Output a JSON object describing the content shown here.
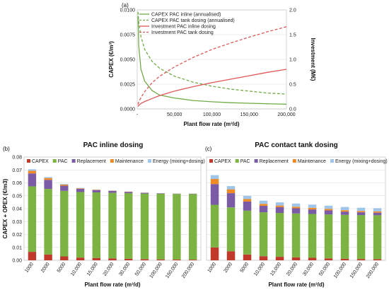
{
  "chart_data": [
    {
      "type": "line",
      "panel_label": "(a)",
      "xlabel": "Plant flow rate (m³/d)",
      "ylabel_left": "CAPEX (€/m³)",
      "ylabel_right": "Investment (M€)",
      "xlim": [
        0,
        200000
      ],
      "ylim_left": [
        0,
        0.01
      ],
      "ylim_right": [
        0,
        2.0
      ],
      "x_ticks": [
        "-",
        "50,000",
        "100,000",
        "150,000",
        "200,000"
      ],
      "y_ticks_left": [
        "0.0000",
        "0.0025",
        "0.0050",
        "0.0075",
        "0.0100"
      ],
      "y_ticks_right": [
        "0.0",
        "0.5",
        "1.0",
        "1.5",
        "2.0"
      ],
      "legend_position": "top-left",
      "x": [
        1000,
        2000,
        5000,
        10000,
        20000,
        30000,
        50000,
        75000,
        100000,
        125000,
        150000,
        175000,
        200000
      ],
      "series": [
        {
          "name": "CAPEX PAC inline (annualised)",
          "axis": "left",
          "color": "#70ad47",
          "dash": "solid",
          "values": [
            0.0094,
            0.0064,
            0.004,
            0.0028,
            0.00185,
            0.0014,
            0.0011,
            0.00085,
            0.00072,
            0.00063,
            0.00057,
            0.00052,
            0.00048
          ]
        },
        {
          "name": "CAPEX PAC tank dosing (annualised)",
          "axis": "left",
          "color": "#70ad47",
          "dash": "dashed",
          "values": [
            0.0098,
            0.0088,
            0.0073,
            0.006,
            0.0048,
            0.0041,
            0.0033,
            0.0027,
            0.0023,
            0.002,
            0.0018,
            0.0016,
            0.0015
          ]
        },
        {
          "name": "Investment PAC inline dosing",
          "axis": "right",
          "color": "#e15759",
          "dash": "solid",
          "values": [
            0.05,
            0.07,
            0.11,
            0.15,
            0.21,
            0.27,
            0.36,
            0.45,
            0.53,
            0.6,
            0.67,
            0.74,
            0.8
          ]
        },
        {
          "name": "Investment PAC tank dosing",
          "axis": "right",
          "color": "#e15759",
          "dash": "dashed",
          "values": [
            0.09,
            0.14,
            0.23,
            0.35,
            0.53,
            0.66,
            0.85,
            1.04,
            1.2,
            1.33,
            1.45,
            1.56,
            1.66
          ]
        }
      ]
    },
    {
      "type": "bar",
      "stacked": true,
      "panel_label": "(b)",
      "title": "PAC inline dosing",
      "xlabel": "Plant flow rate (m³/d)",
      "ylabel": "CAPEX + OPEX (€/m3)",
      "ylim": [
        0,
        0.08
      ],
      "y_ticks": [
        "0.00",
        "0.01",
        "0.02",
        "0.03",
        "0.04",
        "0.05",
        "0.06",
        "0.07",
        "0.08"
      ],
      "legend_position": "top",
      "categories": [
        "1000",
        "2000",
        "5000",
        "10,000",
        "15,000",
        "20,000",
        "30,000",
        "50,000",
        "100,000",
        "150,000",
        "200,000"
      ],
      "series": [
        {
          "name": "CAPEX",
          "color": "#c0392b",
          "values": [
            0.0065,
            0.0045,
            0.003,
            0.0021,
            0.0018,
            0.0015,
            0.0012,
            0.0009,
            0.0007,
            0.0006,
            0.0005
          ]
        },
        {
          "name": "PAC",
          "color": "#7cb342",
          "values": [
            0.0508,
            0.0508,
            0.0508,
            0.0508,
            0.0508,
            0.0508,
            0.0508,
            0.0508,
            0.0508,
            0.0508,
            0.0508
          ]
        },
        {
          "name": "Replacement",
          "color": "#7b5aa6",
          "values": [
            0.01,
            0.007,
            0.004,
            0.0025,
            0.0018,
            0.0014,
            0.001,
            0.0006,
            0.0003,
            0.0002,
            0.0002
          ]
        },
        {
          "name": "Maintenance",
          "color": "#f08a24",
          "values": [
            0.002,
            0.0014,
            0.0008,
            0.0004,
            0.0003,
            0.0002,
            0.0002,
            0.0001,
            0.0001,
            0.0001,
            0.0001
          ]
        },
        {
          "name": "Energy (mixing+dosing)",
          "color": "#9fc5e8",
          "values": [
            0.0012,
            0.0008,
            0.0005,
            0.0003,
            0.0002,
            0.0002,
            0.0001,
            0.0001,
            0.0001,
            0.0001,
            0.0001
          ]
        }
      ]
    },
    {
      "type": "bar",
      "stacked": true,
      "panel_label": "(c)",
      "title": "PAC contact tank dosing",
      "xlabel": "Plant flow rate (m³/d)",
      "ylim": [
        0,
        0.08
      ],
      "legend_position": "top",
      "categories": [
        "1000",
        "2000",
        "5000",
        "10,000",
        "15,000",
        "20,000",
        "30,000",
        "50,000",
        "100,000",
        "150,000",
        "200,000"
      ],
      "series": [
        {
          "name": "CAPEX",
          "color": "#c0392b",
          "values": [
            0.01,
            0.007,
            0.0045,
            0.0032,
            0.0027,
            0.0023,
            0.0019,
            0.0015,
            0.0012,
            0.001,
            0.0009
          ]
        },
        {
          "name": "PAC",
          "color": "#7cb342",
          "values": [
            0.033,
            0.034,
            0.034,
            0.034,
            0.034,
            0.034,
            0.034,
            0.034,
            0.034,
            0.034,
            0.034
          ]
        },
        {
          "name": "Replacement",
          "color": "#7b5aa6",
          "values": [
            0.016,
            0.011,
            0.007,
            0.005,
            0.0045,
            0.004,
            0.0035,
            0.0032,
            0.0025,
            0.0022,
            0.002
          ]
        },
        {
          "name": "Maintenance",
          "color": "#f08a24",
          "values": [
            0.004,
            0.003,
            0.002,
            0.0015,
            0.0012,
            0.0012,
            0.0012,
            0.0011,
            0.0011,
            0.001,
            0.001
          ]
        },
        {
          "name": "Energy (mixing+dosing)",
          "color": "#9fc5e8",
          "values": [
            0.003,
            0.0025,
            0.0025,
            0.0025,
            0.0025,
            0.0025,
            0.0025,
            0.0025,
            0.0025,
            0.0025,
            0.0025
          ]
        }
      ]
    }
  ]
}
